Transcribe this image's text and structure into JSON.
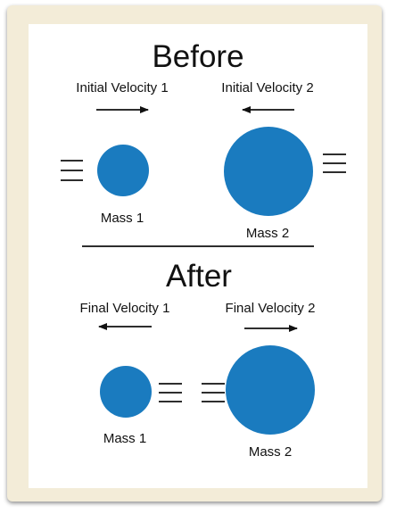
{
  "before": {
    "title": "Before",
    "velocity_1_label": "Initial Velocity 1",
    "velocity_2_label": "Initial Velocity 2",
    "mass_1_label": "Mass 1",
    "mass_2_label": "Mass 2"
  },
  "after": {
    "title": "After",
    "velocity_1_label": "Final Velocity 1",
    "velocity_2_label": "Final Velocity 2",
    "mass_1_label": "Mass 1",
    "mass_2_label": "Mass 2"
  },
  "colors": {
    "mass_fill": "#1a7bbf",
    "frame": "#f3ecd8",
    "ink": "#111111"
  },
  "icons": {
    "motion_lines": "motion-lines-icon",
    "arrow_right": "arrow-right-icon",
    "arrow_left": "arrow-left-icon"
  }
}
